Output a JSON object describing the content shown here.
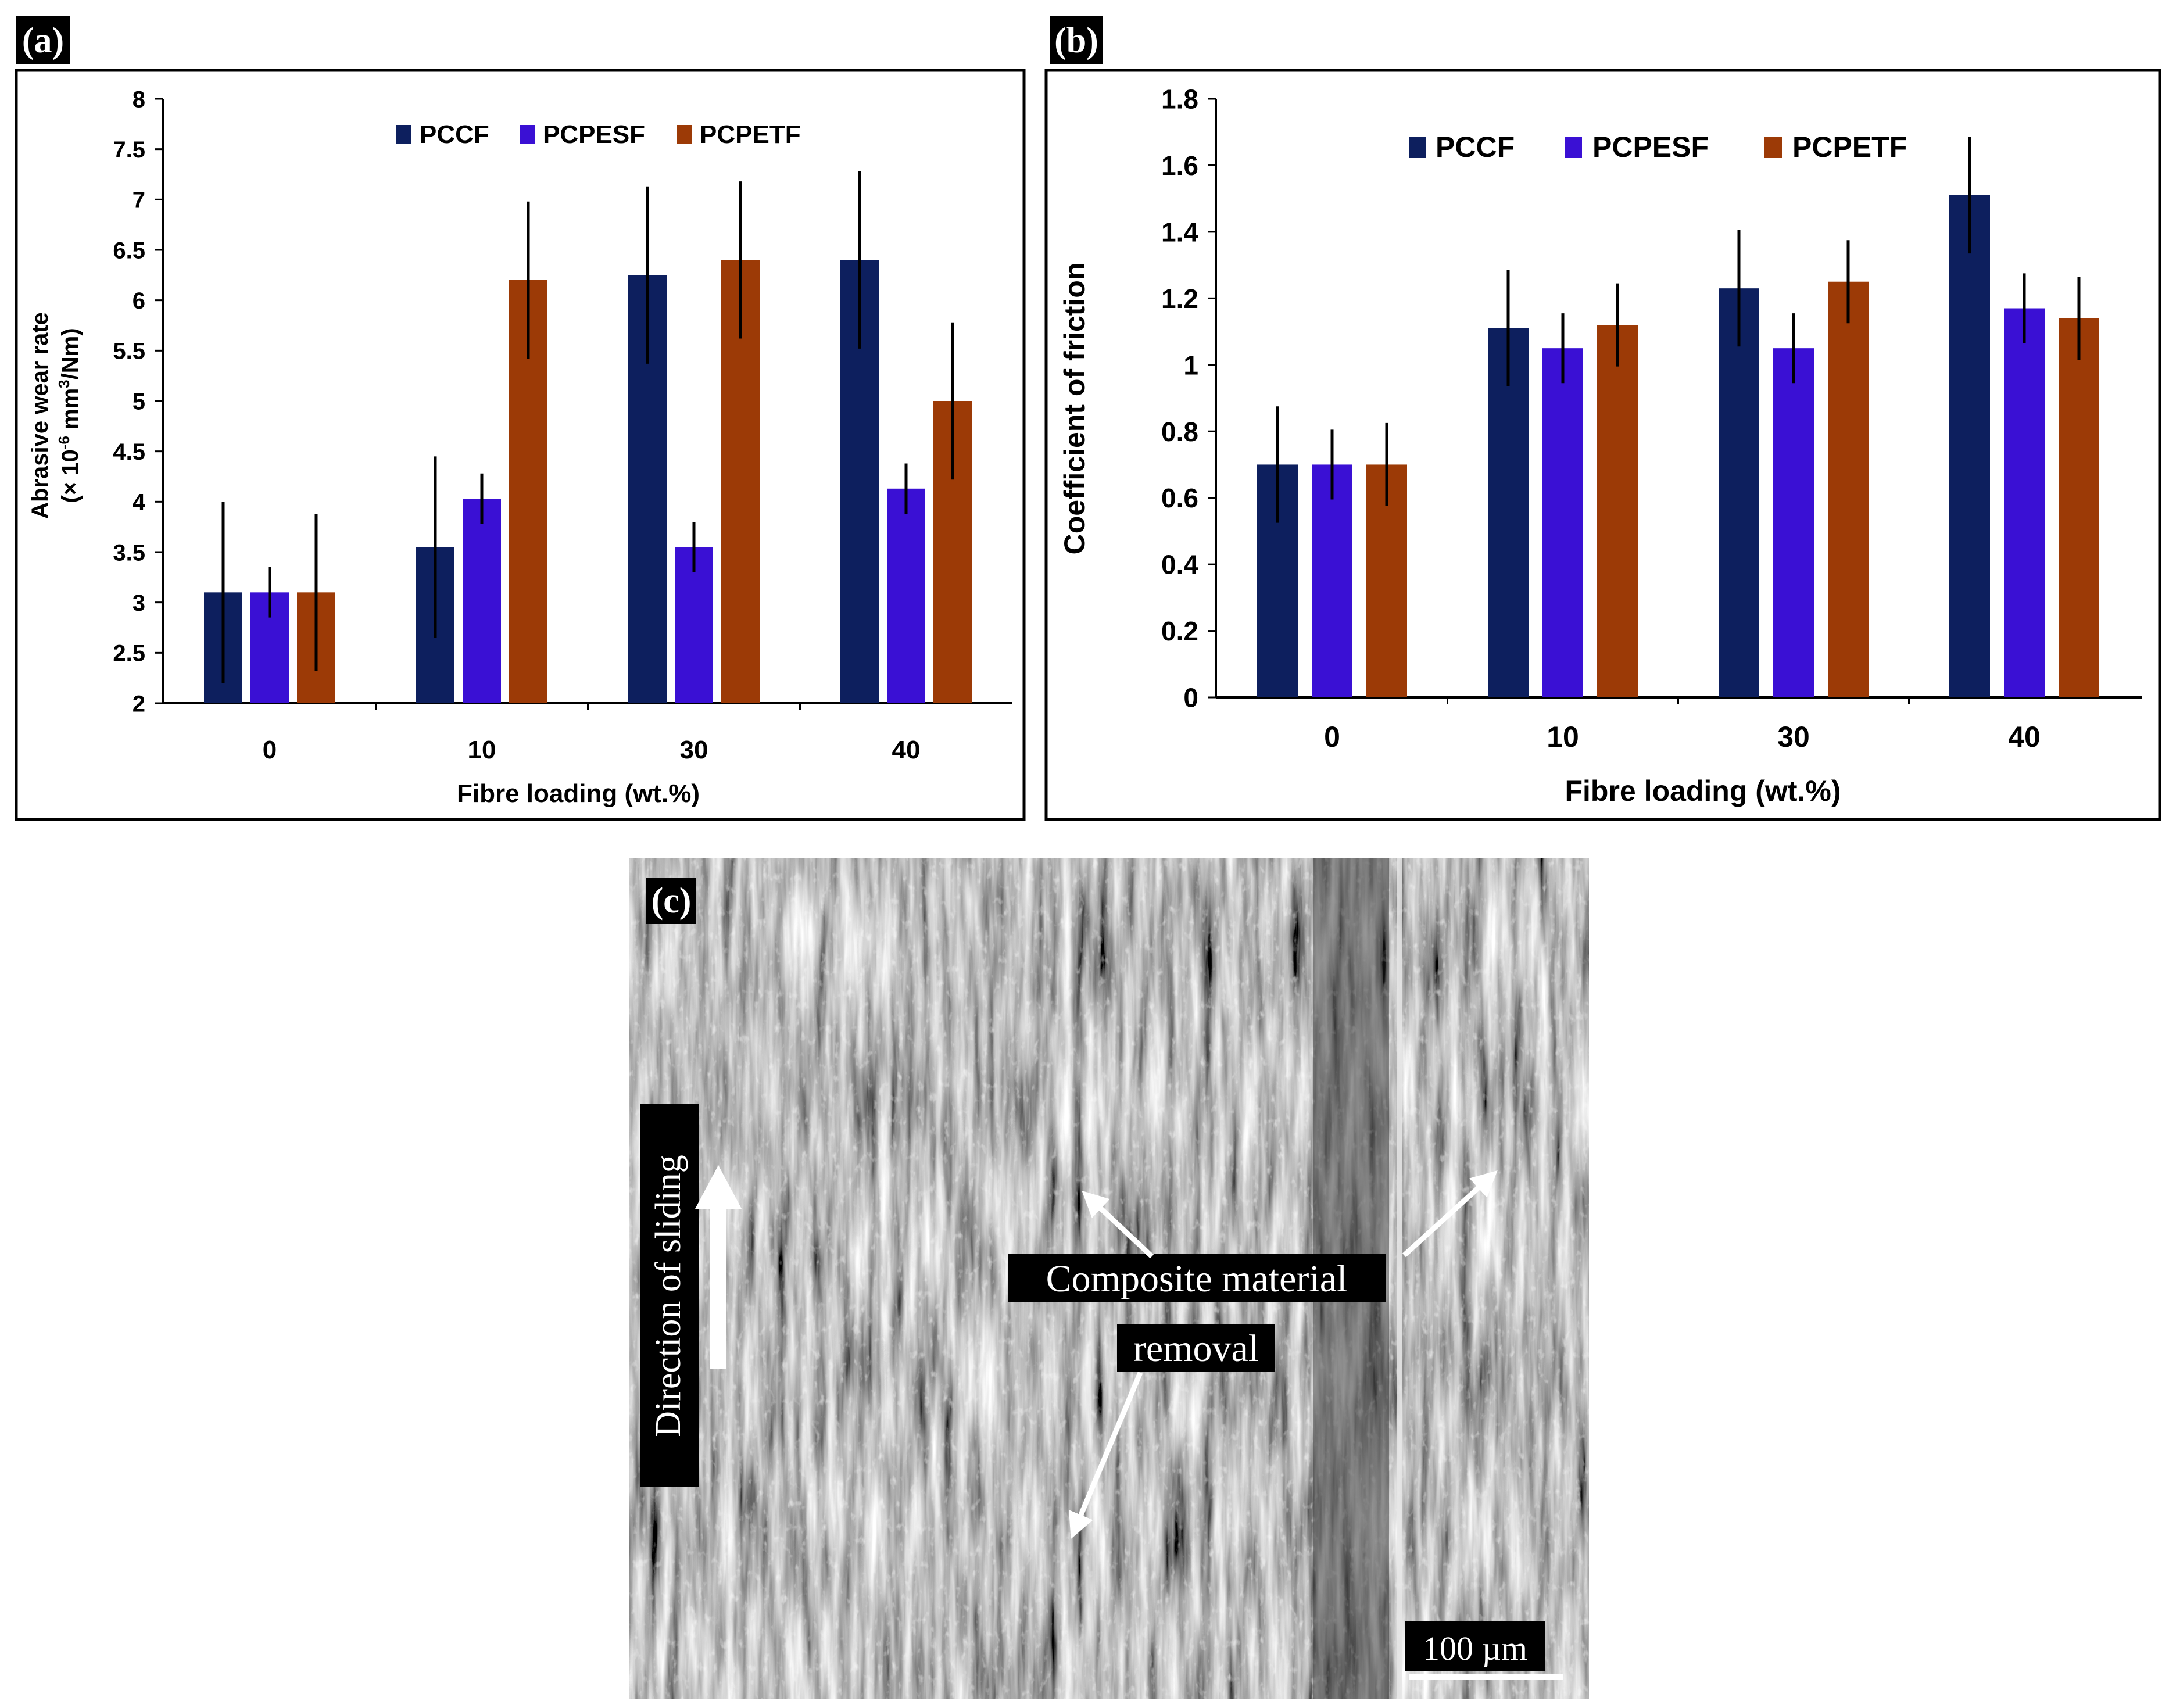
{
  "colors": {
    "PCCF": "#0d1f5e",
    "PCPESF": "#3a10d4",
    "PCPETF": "#9c3a06",
    "label_bg": "#000000"
  },
  "chart_data": [
    {
      "id": "a",
      "panel_label": "(a)",
      "type": "bar",
      "categories": [
        "0",
        "10",
        "30",
        "40"
      ],
      "series": [
        {
          "name": "PCCF",
          "values": [
            3.1,
            3.55,
            6.25,
            6.4
          ],
          "errors": [
            0.9,
            0.9,
            0.88,
            0.88
          ]
        },
        {
          "name": "PCPESF",
          "values": [
            3.1,
            4.03,
            3.55,
            4.13
          ],
          "errors": [
            0.25,
            0.25,
            0.25,
            0.25
          ]
        },
        {
          "name": "PCPETF",
          "values": [
            3.1,
            6.2,
            6.4,
            5.0
          ],
          "errors": [
            0.78,
            0.78,
            0.78,
            0.78
          ]
        }
      ],
      "xlabel": "Fibre loading (wt.%)",
      "ylabel_line1": "Abrasive wear rate",
      "ylabel_line2_prefix": "(× 10",
      "ylabel_line2_exp": "-6",
      "ylabel_line2_mid": " mm",
      "ylabel_line2_exp2": "3",
      "ylabel_line2_suffix": "/Nm)",
      "ylim": [
        2,
        8
      ],
      "yticks": [
        "2",
        "2.5",
        "3",
        "3.5",
        "4",
        "4.5",
        "5",
        "5.5",
        "6",
        "6.5",
        "7",
        "7.5",
        "8"
      ],
      "legend_position": "top"
    },
    {
      "id": "b",
      "panel_label": "(b)",
      "type": "bar",
      "categories": [
        "0",
        "10",
        "30",
        "40"
      ],
      "series": [
        {
          "name": "PCCF",
          "values": [
            0.7,
            1.11,
            1.23,
            1.51
          ],
          "errors": [
            0.175,
            0.175,
            0.175,
            0.175
          ]
        },
        {
          "name": "PCPESF",
          "values": [
            0.7,
            1.05,
            1.05,
            1.17
          ],
          "errors": [
            0.105,
            0.105,
            0.105,
            0.105
          ]
        },
        {
          "name": "PCPETF",
          "values": [
            0.7,
            1.12,
            1.25,
            1.14
          ],
          "errors": [
            0.125,
            0.125,
            0.125,
            0.125
          ]
        }
      ],
      "xlabel": "Fibre loading (wt.%)",
      "ylabel": "Coefficient of friction",
      "ylim": [
        0,
        1.8
      ],
      "yticks": [
        "0",
        "0.2",
        "0.4",
        "0.6",
        "0.8",
        "1",
        "1.2",
        "1.4",
        "1.6",
        "1.8"
      ],
      "legend_position": "top"
    }
  ],
  "sem": {
    "panel_label": "(c)",
    "direction_label": "Direction of sliding",
    "annotation_line1": "Composite material",
    "annotation_line2": "removal",
    "scale_bar": "100 µm"
  }
}
